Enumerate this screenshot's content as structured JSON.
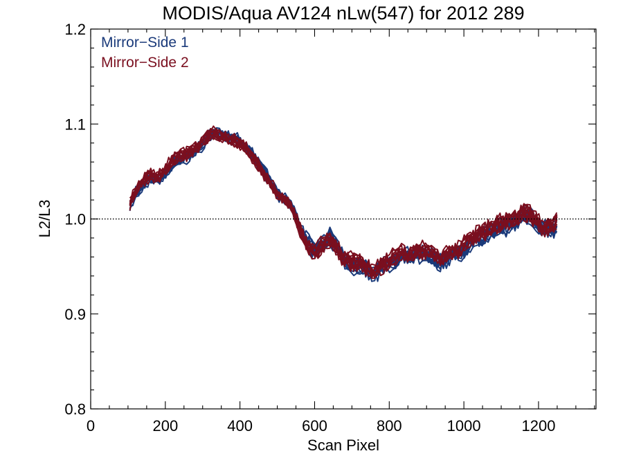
{
  "chart_data": {
    "type": "line",
    "title": "MODIS/Aqua AV124 nLw(547) for 2012 289",
    "xlabel": "Scan Pixel",
    "ylabel": "L2/L3",
    "xlim": [
      0,
      1354
    ],
    "ylim": [
      0.8,
      1.2
    ],
    "x_ticks": [
      "0",
      "200",
      "400",
      "600",
      "800",
      "1000",
      "1200"
    ],
    "y_ticks": [
      "0.8",
      "0.9",
      "1.0",
      "1.1",
      "1.2"
    ],
    "x_minor_step": 50,
    "y_minor_step": 0.02,
    "reference_line": {
      "y": 1.0,
      "style": "dotted"
    },
    "grid": false,
    "legend": {
      "placement": "top-left"
    },
    "series": [
      {
        "name": "Mirror−Side 1",
        "color": "#1a3a7a",
        "line_count": 10,
        "mean_x": [
          105,
          120,
          140,
          160,
          180,
          200,
          220,
          240,
          260,
          280,
          300,
          320,
          340,
          360,
          380,
          400,
          420,
          440,
          460,
          480,
          500,
          520,
          540,
          560,
          580,
          600,
          620,
          640,
          660,
          680,
          700,
          720,
          740,
          760,
          780,
          800,
          820,
          840,
          860,
          880,
          900,
          920,
          940,
          960,
          980,
          1000,
          1020,
          1040,
          1060,
          1080,
          1100,
          1120,
          1140,
          1160,
          1180,
          1200,
          1220,
          1240,
          1250
        ],
        "mean_y": [
          1.012,
          1.027,
          1.036,
          1.042,
          1.04,
          1.048,
          1.058,
          1.064,
          1.066,
          1.072,
          1.08,
          1.088,
          1.09,
          1.087,
          1.084,
          1.082,
          1.074,
          1.064,
          1.053,
          1.04,
          1.027,
          1.022,
          1.012,
          0.993,
          0.976,
          0.967,
          0.972,
          0.982,
          0.97,
          0.958,
          0.95,
          0.952,
          0.947,
          0.942,
          0.949,
          0.955,
          0.957,
          0.962,
          0.96,
          0.964,
          0.962,
          0.958,
          0.955,
          0.96,
          0.964,
          0.967,
          0.974,
          0.98,
          0.984,
          0.988,
          0.991,
          0.993,
          0.996,
          1.004,
          1.003,
          0.992,
          0.988,
          0.989,
          0.992
        ]
      },
      {
        "name": "Mirror−Side 2",
        "color": "#7a0f1f",
        "line_count": 10,
        "mean_x": [
          105,
          120,
          140,
          160,
          180,
          200,
          220,
          240,
          260,
          280,
          300,
          320,
          340,
          360,
          380,
          400,
          420,
          440,
          460,
          480,
          500,
          520,
          540,
          560,
          580,
          600,
          620,
          640,
          660,
          680,
          700,
          720,
          740,
          760,
          780,
          800,
          820,
          840,
          860,
          880,
          900,
          920,
          940,
          960,
          980,
          1000,
          1020,
          1040,
          1060,
          1080,
          1100,
          1120,
          1140,
          1160,
          1180,
          1200,
          1220,
          1240,
          1250
        ],
        "mean_y": [
          1.015,
          1.03,
          1.04,
          1.046,
          1.044,
          1.052,
          1.062,
          1.067,
          1.068,
          1.074,
          1.081,
          1.089,
          1.089,
          1.086,
          1.083,
          1.08,
          1.073,
          1.062,
          1.05,
          1.037,
          1.025,
          1.021,
          1.01,
          0.99,
          0.972,
          0.966,
          0.972,
          0.98,
          0.968,
          0.958,
          0.954,
          0.955,
          0.948,
          0.944,
          0.95,
          0.957,
          0.96,
          0.964,
          0.963,
          0.967,
          0.965,
          0.962,
          0.959,
          0.963,
          0.967,
          0.972,
          0.978,
          0.984,
          0.988,
          0.992,
          0.995,
          0.998,
          1.0,
          1.008,
          1.004,
          0.995,
          0.99,
          0.992,
          0.998
        ]
      }
    ]
  }
}
